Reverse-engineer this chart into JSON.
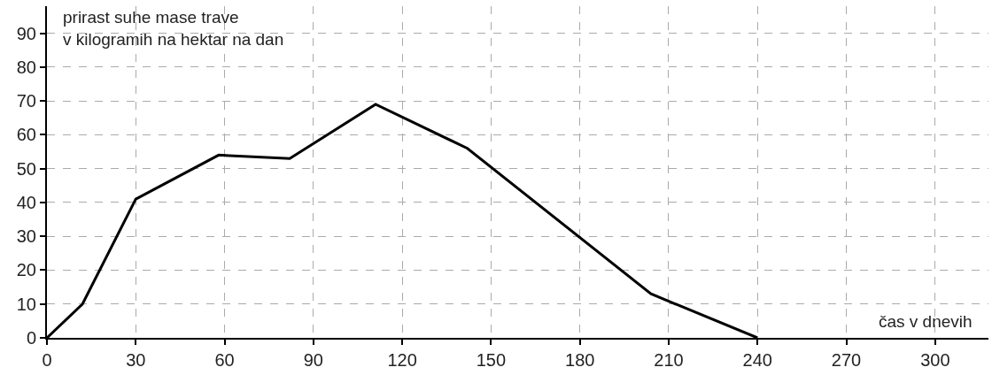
{
  "chart_data": {
    "type": "line",
    "xlabel": "čas v dnevih",
    "ylabel": "prirast suhe mase trave\nv kilogramih na hektar na dan",
    "x": [
      0,
      12,
      30,
      58,
      82,
      111,
      142,
      204,
      240
    ],
    "series": [
      {
        "color": "#000000",
        "values": [
          0,
          10,
          41,
          54,
          53,
          69,
          56,
          13,
          0
        ]
      }
    ],
    "xlim": [
      0,
      318
    ],
    "ylim": [
      0,
      98
    ],
    "xticks": [
      0,
      30,
      60,
      90,
      120,
      150,
      180,
      210,
      240,
      270,
      300
    ],
    "yticks": [
      0,
      10,
      20,
      30,
      40,
      50,
      60,
      70,
      80,
      90
    ],
    "grid": true,
    "line_style": "solid",
    "marker": "none"
  }
}
